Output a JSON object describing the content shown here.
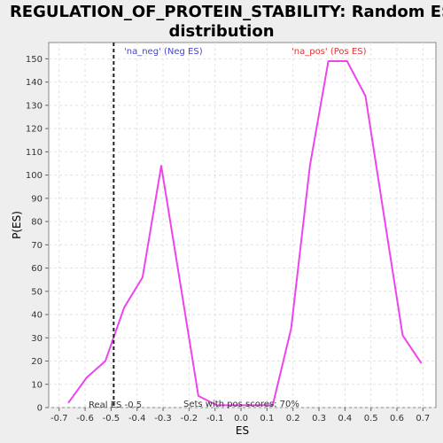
{
  "chart_data": {
    "type": "line",
    "title_line1": "REGULATION_OF_PROTEIN_STABILITY: Random ES",
    "title_line2": "distribution",
    "xlabel": "ES",
    "ylabel": "P(ES)",
    "xlim": [
      -0.74,
      0.75
    ],
    "ylim": [
      0,
      157
    ],
    "x_ticks": [
      -0.7,
      -0.6,
      -0.5,
      -0.4,
      -0.3,
      -0.2,
      -0.1,
      0.0,
      0.1,
      0.2,
      0.3,
      0.4,
      0.5,
      0.6,
      0.7
    ],
    "y_ticks": [
      0,
      10,
      20,
      30,
      40,
      50,
      60,
      70,
      80,
      90,
      100,
      110,
      120,
      130,
      140,
      150
    ],
    "grid": true,
    "series": [
      {
        "color": "#ee44ee",
        "x": [
          -0.665,
          -0.593,
          -0.522,
          -0.45,
          -0.379,
          -0.307,
          -0.236,
          -0.164,
          -0.093,
          -0.021,
          0.05,
          0.122,
          0.193,
          0.265,
          0.336,
          0.408,
          0.479,
          0.551,
          0.622,
          0.694
        ],
        "y": [
          2,
          13,
          20,
          43,
          56,
          104,
          55,
          5,
          1,
          1,
          1,
          1,
          34,
          104,
          149,
          149,
          134,
          82,
          31,
          19
        ]
      }
    ],
    "real_es": -0.49,
    "annotations": {
      "neg_label": "'na_neg' (Neg ES)",
      "pos_label": "'na_pos' (Pos ES)",
      "real_es_label": "Real ES -0.5",
      "pos_scores_label": "Sets with pos scores: 70%"
    },
    "colors": {
      "line": "#ee44ee",
      "neg_label": "#4444cc",
      "pos_label": "#dd3333",
      "grid": "#e2e2e2"
    }
  }
}
